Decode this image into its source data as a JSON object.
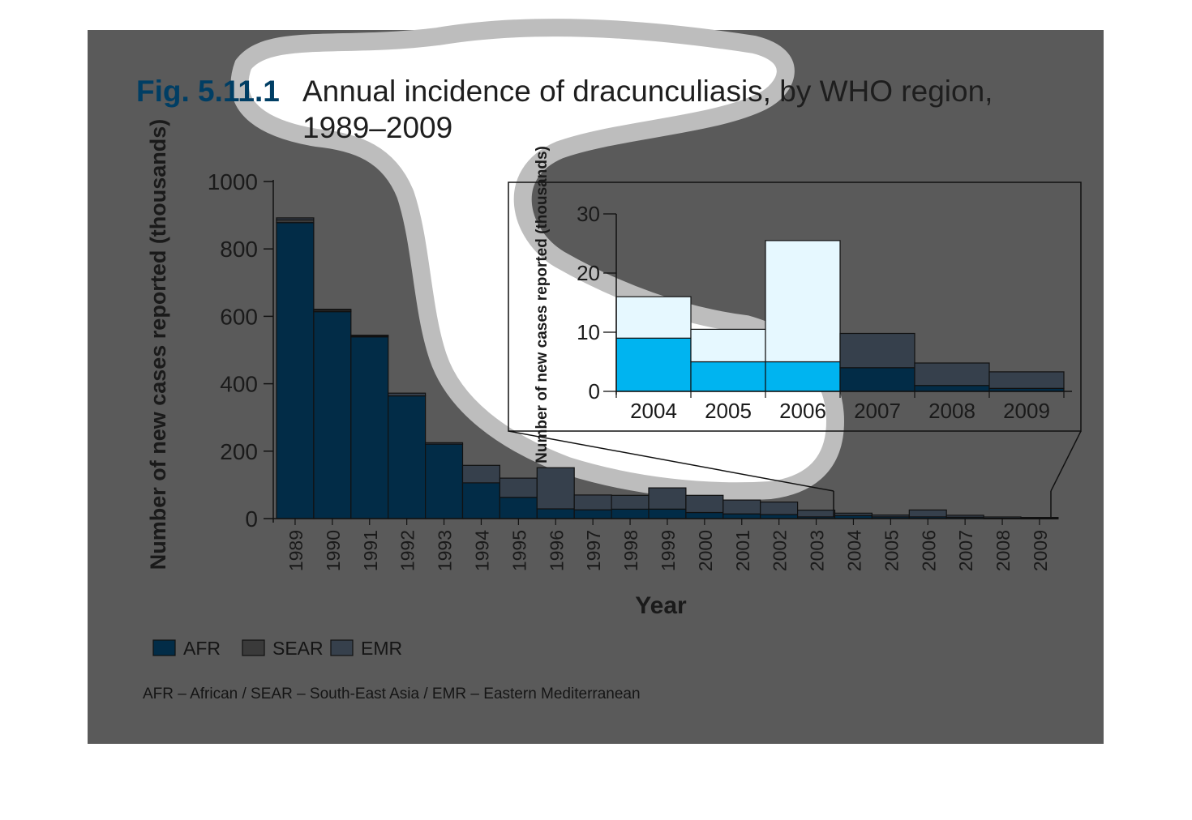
{
  "figure": {
    "number": "Fig. 5.11.1",
    "title_line1": "Annual incidence of dracunculiasis, by WHO region,",
    "title_line2": "1989–2009",
    "footnote": "AFR – African / SEAR – South-East Asia / EMR – Eastern Mediterranean"
  },
  "colors": {
    "panel": "#5a5a5a",
    "AFR": "#022c47",
    "SEAR": "#3a3a3a",
    "EMR": "#36404c",
    "outline": "#111111",
    "accent_blue": "#00b4f0",
    "fig_label": "#003e64",
    "highlight_afr": "#00b4f0",
    "highlight_emr": "#e6f8ff"
  },
  "chart_data": [
    {
      "type": "bar",
      "stacked": true,
      "ylabel": "Number of new cases reported (thousands)",
      "xlabel": "Year",
      "ylim": [
        0,
        1000
      ],
      "yticks": [
        0,
        200,
        400,
        600,
        800,
        1000
      ],
      "categories": [
        "1989",
        "1990",
        "1991",
        "1992",
        "1993",
        "1994",
        "1995",
        "1996",
        "1997",
        "1998",
        "1999",
        "2000",
        "2001",
        "2002",
        "2003",
        "2004",
        "2005",
        "2006",
        "2007",
        "2008",
        "2009"
      ],
      "series": [
        {
          "name": "AFR",
          "values": [
            878,
            614,
            539,
            364,
            221,
            106,
            63,
            29,
            26,
            28,
            28,
            18,
            14,
            12,
            5,
            9,
            5,
            5,
            4,
            1,
            0.5
          ]
        },
        {
          "name": "SEAR",
          "values": [
            8,
            4,
            3,
            0,
            0,
            0,
            0,
            0,
            0,
            0,
            0,
            0,
            0,
            0,
            0,
            0,
            0,
            0,
            0,
            0,
            0
          ]
        },
        {
          "name": "EMR",
          "values": [
            6,
            3,
            2,
            8,
            4,
            52,
            57,
            122,
            44,
            41,
            63,
            51,
            41,
            37,
            20,
            7,
            5.5,
            20.5,
            5.8,
            3.8,
            2.8
          ]
        }
      ],
      "legend": [
        "AFR",
        "SEAR",
        "EMR"
      ],
      "legend_position": "bottom-left"
    },
    {
      "type": "bar",
      "stacked": true,
      "inset": true,
      "ylabel": "Number of new cases reported (thousands)",
      "ylim": [
        0,
        30
      ],
      "yticks": [
        0,
        10,
        20,
        30
      ],
      "categories": [
        "2004",
        "2005",
        "2006",
        "2007",
        "2008",
        "2009"
      ],
      "series": [
        {
          "name": "AFR",
          "values": [
            9,
            5,
            5,
            4,
            1,
            0.5
          ]
        },
        {
          "name": "EMR",
          "values": [
            7,
            5.5,
            20.5,
            5.8,
            3.8,
            2.8
          ]
        }
      ]
    }
  ]
}
